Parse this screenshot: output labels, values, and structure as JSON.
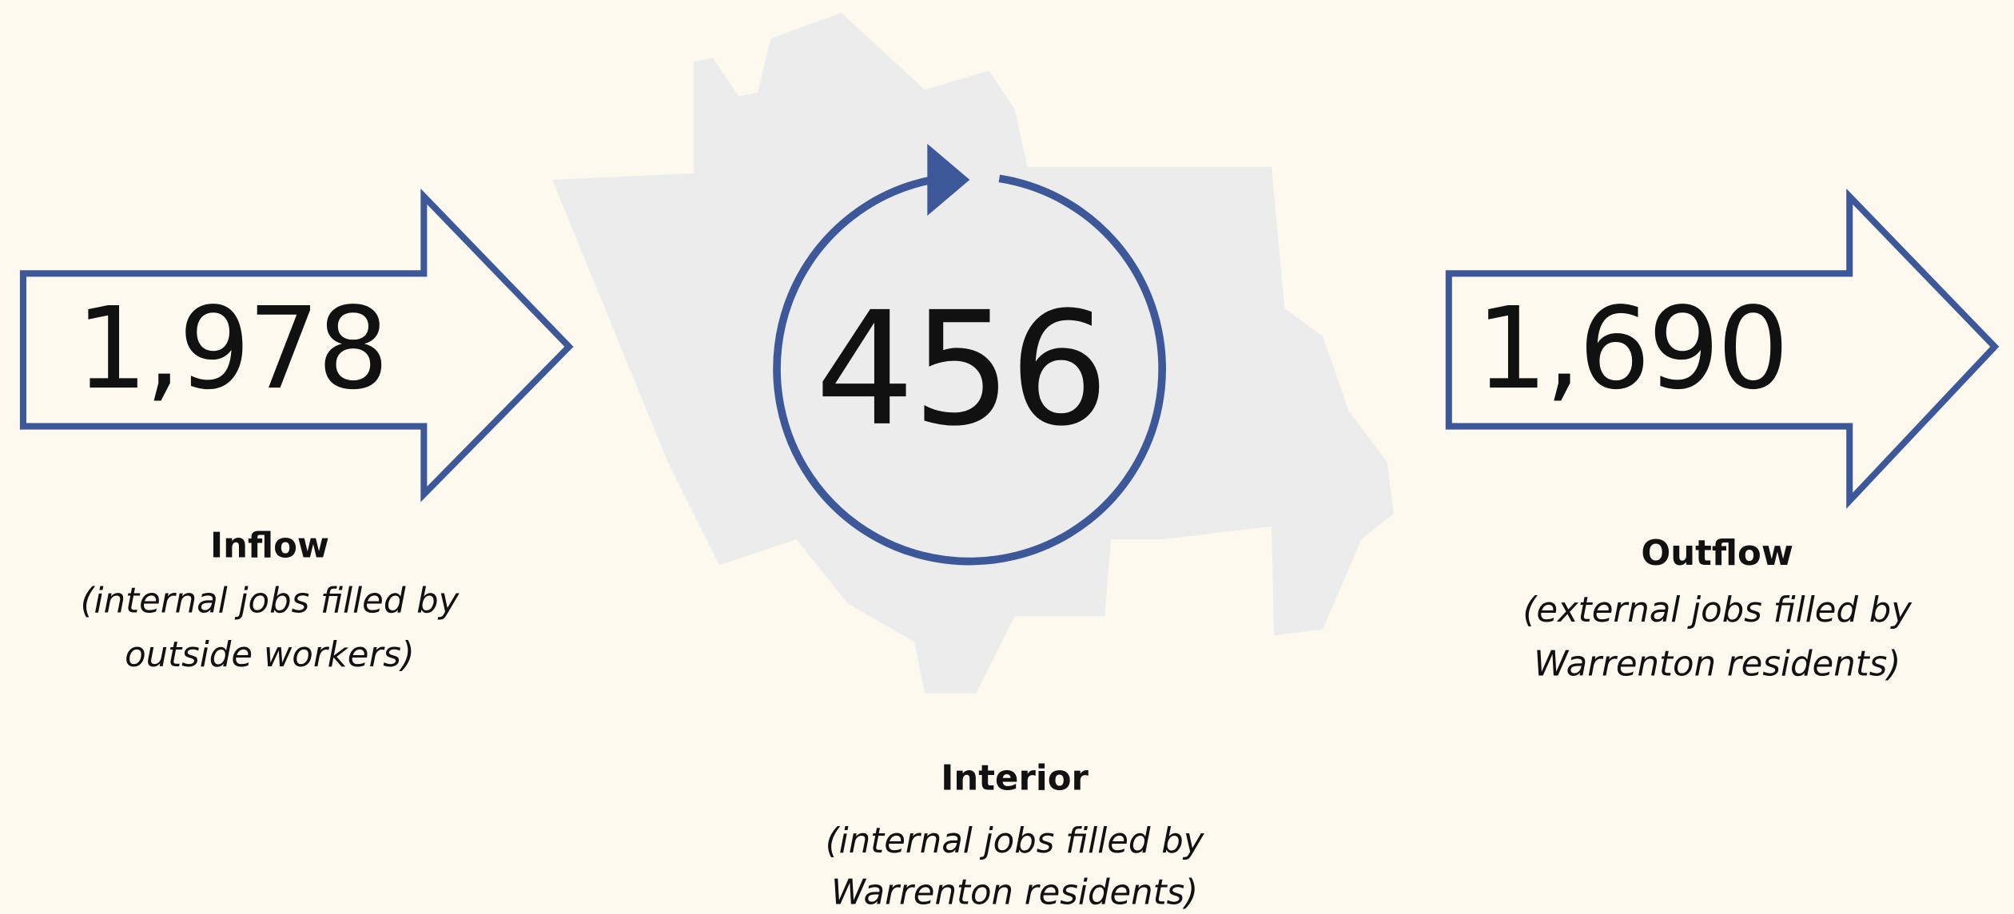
{
  "flows": [
    {
      "value": "1,978",
      "label": "Inflow",
      "description": [
        "(internal jobs filled by",
        "outside workers)"
      ]
    },
    {
      "value": "456",
      "label": "Interior",
      "description": [
        "(internal jobs filled by",
        "Warrenton residents)"
      ]
    },
    {
      "value": "1,690",
      "label": "Outflow",
      "description": [
        "(external jobs filled by",
        "Warrenton residents)"
      ]
    }
  ]
}
